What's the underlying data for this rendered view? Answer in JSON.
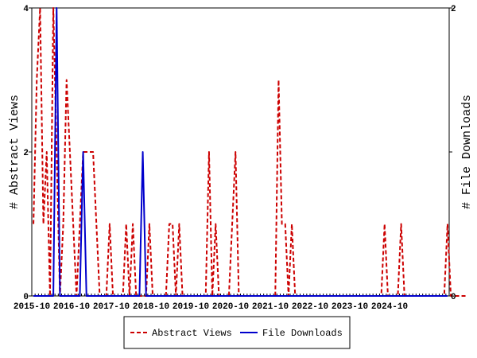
{
  "chart_data": {
    "type": "line",
    "y_left_label": "# Abstract Views",
    "y_right_label": "# File Downloads",
    "y_left_range": [
      0,
      4
    ],
    "y_right_range": [
      0,
      2
    ],
    "y_left_ticks": [
      "0",
      "2",
      "4"
    ],
    "y_right_ticks": [
      "0",
      "1",
      "2"
    ],
    "x_tick_labels": [
      "2015-10",
      "2016-10",
      "2017-10",
      "2018-10",
      "2019-10",
      "2020-10",
      "2021-10",
      "2022-10",
      "2023-10",
      "2024-10"
    ],
    "x_month_count": 126,
    "series": [
      {
        "name": "Abstract Views",
        "axis": "left",
        "color": "#cc0000",
        "style": "dashed",
        "values": [
          1,
          3,
          4,
          1,
          2,
          0,
          4,
          2,
          0,
          1,
          3,
          2,
          1,
          0,
          1,
          2,
          2,
          2,
          2,
          1,
          0,
          0,
          0,
          1,
          0,
          0,
          0,
          0,
          1,
          0,
          1,
          0,
          0,
          0,
          0,
          1,
          0,
          0,
          0,
          0,
          0,
          1,
          1,
          0,
          1,
          0,
          0,
          0,
          0,
          0,
          0,
          0,
          0,
          2,
          0,
          1,
          0,
          0,
          0,
          0,
          1,
          2,
          0,
          0,
          0,
          0,
          0,
          0,
          0,
          0,
          0,
          0,
          0,
          0,
          3,
          1,
          1,
          0,
          1,
          0,
          0,
          0,
          0,
          0,
          0,
          0,
          0,
          0,
          0,
          0,
          0,
          0,
          0,
          0,
          0,
          0,
          0,
          0,
          0,
          0,
          0,
          0,
          0,
          0,
          0,
          0,
          1,
          0,
          0,
          0,
          0,
          1,
          0,
          0,
          0,
          0,
          0,
          0,
          0,
          0,
          0,
          0,
          0,
          0,
          0,
          1,
          0,
          0,
          0,
          0,
          0,
          0
        ]
      },
      {
        "name": "File Downloads",
        "axis": "right",
        "color": "#0000cc",
        "style": "solid",
        "values": [
          0,
          0,
          0,
          0,
          0,
          0,
          0,
          2,
          0,
          0,
          0,
          0,
          0,
          0,
          0,
          1,
          0,
          0,
          0,
          0,
          0,
          0,
          0,
          0,
          0,
          0,
          0,
          0,
          0,
          0,
          0,
          0,
          0,
          1,
          0,
          0,
          0,
          0,
          0,
          0,
          0,
          0,
          0,
          0,
          0,
          0,
          0,
          0,
          0,
          0,
          0,
          0,
          0,
          0,
          0,
          0,
          0,
          0,
          0,
          0,
          0,
          0,
          0,
          0,
          0,
          0,
          0,
          0,
          0,
          0,
          0,
          0,
          0,
          0,
          0,
          0,
          0,
          0,
          0,
          0,
          0,
          0,
          0,
          0,
          0,
          0,
          0,
          0,
          0,
          0,
          0,
          0,
          0,
          0,
          0,
          0,
          0,
          0,
          0,
          0,
          0,
          0,
          0,
          0,
          0,
          0,
          0,
          0,
          0,
          0,
          0,
          0,
          0,
          0,
          0,
          0,
          0,
          0,
          0,
          0,
          0,
          0,
          0,
          0,
          0,
          0
        ]
      }
    ],
    "legend_placement": "bottom-center",
    "grid": false
  }
}
